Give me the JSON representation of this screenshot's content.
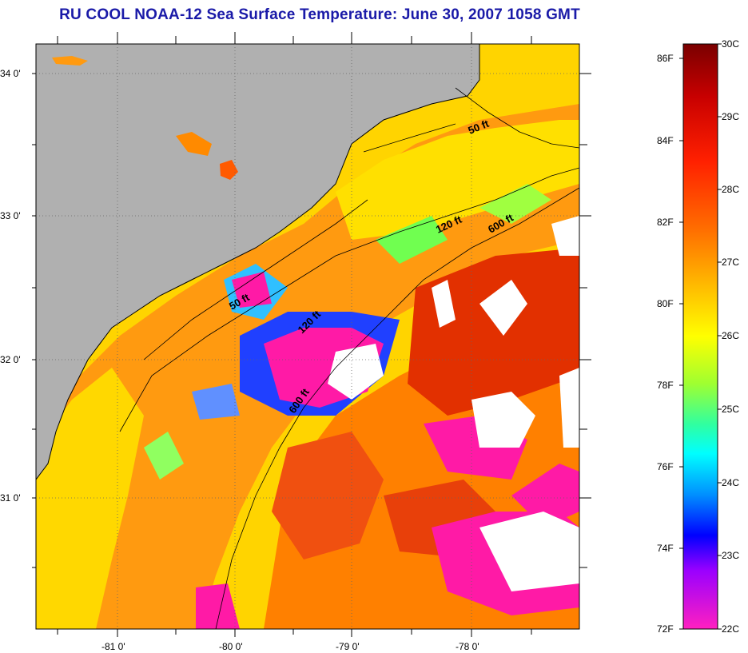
{
  "title": "RU COOL  NOAA-12  Sea Surface Temperature:  June 30, 2007 1058 GMT",
  "lat_labels": [
    "34 0'",
    "33 0'",
    "32 0'",
    "31 0'"
  ],
  "lon_labels": [
    "-81 0'",
    "-80 0'",
    "-79 0'",
    "-78 0'"
  ],
  "isobaths": {
    "shallow_label": "50 ft",
    "mid_label": "120 ft",
    "deep_label": "600 ft"
  },
  "colorbar": {
    "fahrenheit_labels": [
      "86F",
      "84F",
      "82F",
      "80F",
      "78F",
      "76F",
      "74F",
      "72F"
    ],
    "celsius_labels": [
      "30C",
      "29C",
      "28C",
      "27C",
      "26C",
      "25C",
      "24C",
      "23C",
      "22C"
    ],
    "colors": [
      "#7a0000",
      "#c80000",
      "#ff2000",
      "#ff7000",
      "#ffc000",
      "#ffff00",
      "#a0ff30",
      "#30ffa0",
      "#00ffff",
      "#0090ff",
      "#0000ff",
      "#9a00ff",
      "#ff20c0"
    ]
  },
  "colors": {
    "land": "#b0b0b0",
    "ocean_warm": "#ff8a00",
    "ocean_mild": "#ffd400",
    "ocean_hot": "#e03000",
    "cold": "#ff1aa6",
    "cloud": "#ffffff",
    "title_text": "#1a1aa8"
  }
}
